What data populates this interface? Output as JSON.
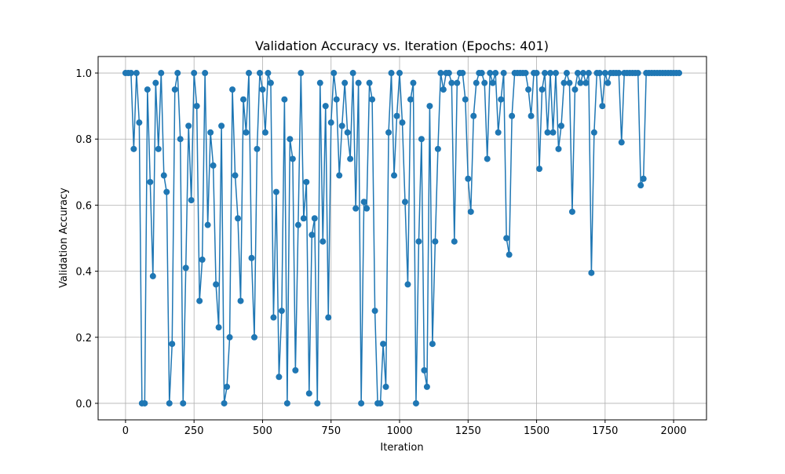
{
  "chart_data": {
    "type": "line",
    "title": "Validation Accuracy vs. Iteration (Epochs: 401)",
    "xlabel": "Iteration",
    "ylabel": "Validation Accuracy",
    "x": [
      0,
      10,
      20,
      30,
      40,
      50,
      60,
      70,
      80,
      90,
      100,
      110,
      120,
      130,
      140,
      150,
      160,
      170,
      180,
      190,
      200,
      210,
      220,
      230,
      240,
      250,
      260,
      270,
      280,
      290,
      300,
      310,
      320,
      330,
      340,
      350,
      360,
      370,
      380,
      390,
      400,
      410,
      420,
      430,
      440,
      450,
      460,
      470,
      480,
      490,
      500,
      510,
      520,
      530,
      540,
      550,
      560,
      570,
      580,
      590,
      600,
      610,
      620,
      630,
      640,
      650,
      660,
      670,
      680,
      690,
      700,
      710,
      720,
      730,
      740,
      750,
      760,
      770,
      780,
      790,
      800,
      810,
      820,
      830,
      840,
      850,
      860,
      870,
      880,
      890,
      900,
      910,
      920,
      930,
      940,
      950,
      960,
      970,
      980,
      990,
      1000,
      1010,
      1020,
      1030,
      1040,
      1050,
      1060,
      1070,
      1080,
      1090,
      1100,
      1110,
      1120,
      1130,
      1140,
      1150,
      1160,
      1170,
      1180,
      1190,
      1200,
      1210,
      1220,
      1230,
      1240,
      1250,
      1260,
      1270,
      1280,
      1290,
      1300,
      1310,
      1320,
      1330,
      1340,
      1350,
      1360,
      1370,
      1380,
      1390,
      1400,
      1410,
      1420,
      1430,
      1440,
      1450,
      1460,
      1470,
      1480,
      1490,
      1500,
      1510,
      1520,
      1530,
      1540,
      1550,
      1560,
      1570,
      1580,
      1590,
      1600,
      1610,
      1620,
      1630,
      1640,
      1650,
      1660,
      1670,
      1680,
      1690,
      1700,
      1710,
      1720,
      1730,
      1740,
      1750,
      1760,
      1770,
      1780,
      1790,
      1800,
      1810,
      1820,
      1830,
      1840,
      1850,
      1860,
      1870,
      1880,
      1890,
      1900,
      1910,
      1920,
      1930,
      1940,
      1950,
      1960,
      1970,
      1980,
      1990,
      2000,
      2010,
      2020
    ],
    "series": [
      {
        "name": "Validation Accuracy",
        "color": "#1f77b4",
        "values": [
          1,
          1,
          1,
          0.77,
          1,
          0.85,
          0,
          0,
          0.95,
          0.67,
          0.385,
          0.97,
          0.77,
          1,
          0.69,
          0.64,
          0,
          0.18,
          0.95,
          1,
          0.8,
          0,
          0.41,
          0.84,
          0.615,
          1,
          0.9,
          0.31,
          0.435,
          1,
          0.54,
          0.82,
          0.72,
          0.36,
          0.23,
          0.84,
          0,
          0.05,
          0.2,
          0.95,
          0.69,
          0.56,
          0.31,
          0.92,
          0.82,
          1,
          0.44,
          0.2,
          0.77,
          1,
          0.95,
          0.82,
          1,
          0.97,
          0.26,
          0.64,
          0.08,
          0.28,
          0.92,
          0,
          0.8,
          0.74,
          0.1,
          0.54,
          1,
          0.56,
          0.67,
          0.03,
          0.51,
          0.56,
          0,
          0.97,
          0.49,
          0.9,
          0.26,
          0.85,
          1,
          0.92,
          0.69,
          0.84,
          0.97,
          0.82,
          0.74,
          1,
          0.59,
          0.97,
          0,
          0.61,
          0.59,
          0.97,
          0.92,
          0.28,
          0,
          0,
          0.18,
          0.05,
          0.82,
          1,
          0.69,
          0.87,
          1,
          0.85,
          0.61,
          0.36,
          0.92,
          0.97,
          0,
          0.49,
          0.8,
          0.1,
          0.05,
          0.9,
          0.18,
          0.49,
          0.77,
          1,
          0.95,
          1,
          1,
          0.97,
          0.49,
          0.97,
          1,
          1,
          0.92,
          0.68,
          0.58,
          0.87,
          0.97,
          1,
          1,
          0.97,
          0.74,
          1,
          0.97,
          1,
          0.82,
          0.92,
          1,
          0.5,
          0.45,
          0.87,
          1,
          1,
          1,
          1,
          1,
          0.95,
          0.87,
          1,
          1,
          0.71,
          0.95,
          1,
          0.82,
          1,
          0.82,
          1,
          0.77,
          0.84,
          0.97,
          1,
          0.97,
          0.58,
          0.95,
          1,
          0.97,
          1,
          0.97,
          1,
          0.395,
          0.82,
          1,
          1,
          0.9,
          1,
          0.97,
          1,
          1,
          1,
          1,
          0.79,
          1,
          1,
          1,
          1,
          1,
          1,
          0.66,
          0.68,
          1,
          1,
          1,
          1,
          1,
          1,
          1,
          1,
          1,
          1,
          1,
          1,
          1
        ]
      }
    ],
    "xlim": [
      -100,
      2120
    ],
    "ylim": [
      -0.05,
      1.05
    ],
    "xticks": [
      0,
      250,
      500,
      750,
      1000,
      1250,
      1500,
      1750,
      2000
    ],
    "yticks": [
      {
        "value": 0,
        "label": "0.0"
      },
      0.2,
      0.4,
      0.6,
      0.8,
      {
        "value": 1,
        "label": "1.0"
      }
    ],
    "grid": true
  }
}
